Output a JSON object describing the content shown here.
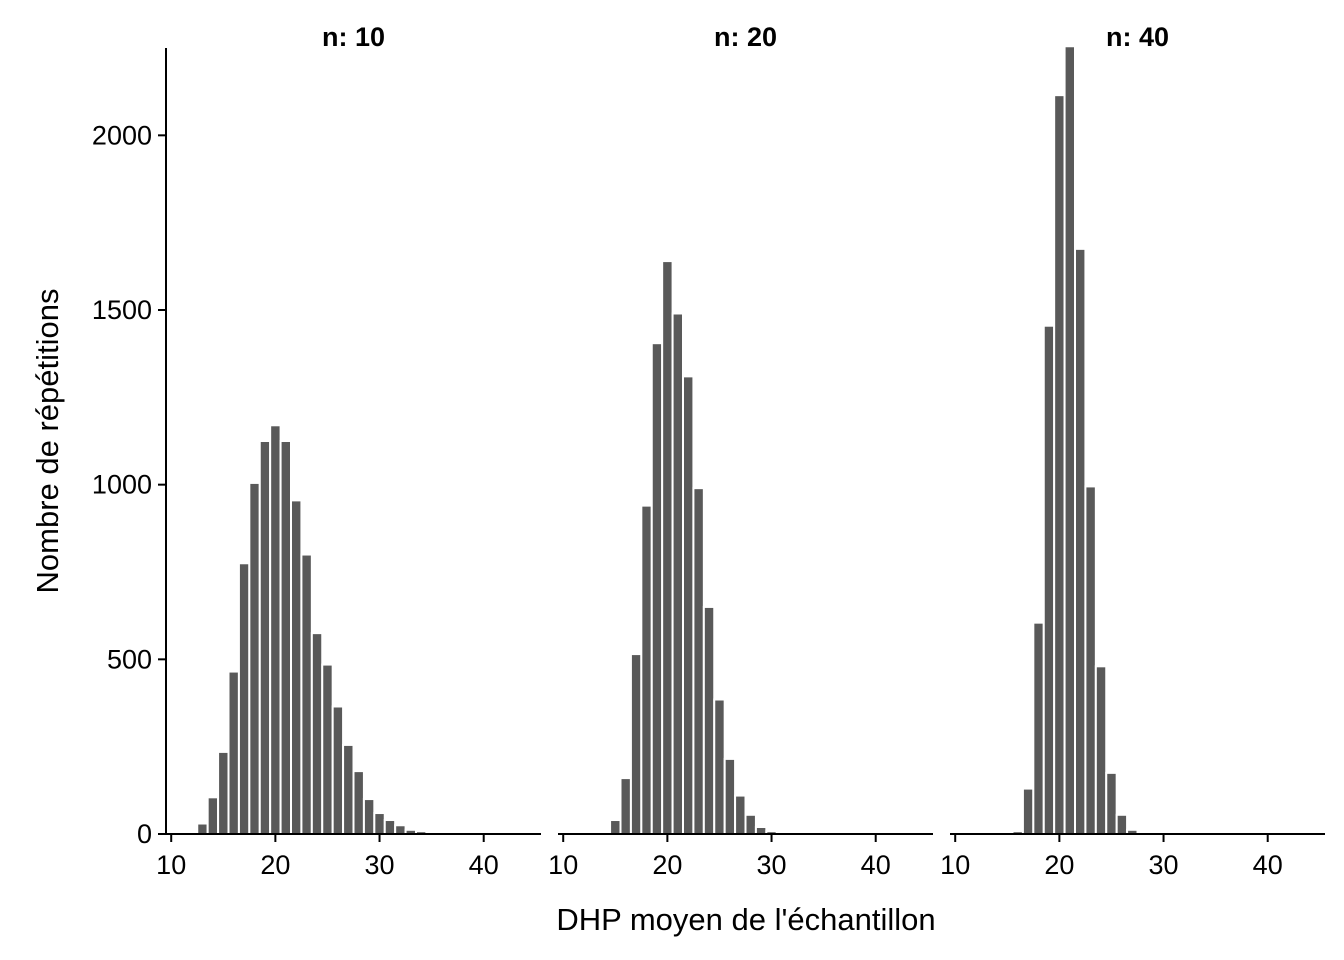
{
  "chart_data": {
    "type": "bar",
    "xlabel": "DHP moyen de l'échantillon",
    "ylabel": "Nombre de répétitions",
    "ylim": [
      0,
      2250
    ],
    "y_ticks": [
      0,
      500,
      1000,
      1500,
      2000
    ],
    "y_tick_labels": [
      "0",
      "500",
      "1000",
      "1500",
      "2000"
    ],
    "xlim": [
      9.5,
      45.5
    ],
    "x_ticks": [
      10,
      20,
      30,
      40
    ],
    "x_tick_labels": [
      "10",
      "20",
      "30",
      "40"
    ],
    "bin_width": 1,
    "grid": false,
    "bar_color": "#595959",
    "panels": [
      {
        "title": "n: 10",
        "bins": [
          13,
          14,
          15,
          16,
          17,
          18,
          19,
          20,
          21,
          22,
          23,
          24,
          25,
          26,
          27,
          28,
          29,
          30,
          31,
          32,
          33,
          34,
          35,
          36
        ],
        "values": [
          30,
          105,
          235,
          465,
          775,
          1005,
          1125,
          1170,
          1125,
          955,
          800,
          575,
          485,
          365,
          255,
          180,
          100,
          60,
          40,
          25,
          12,
          8,
          3,
          2
        ]
      },
      {
        "title": "n: 20",
        "bins": [
          14,
          15,
          16,
          17,
          18,
          19,
          20,
          21,
          22,
          23,
          24,
          25,
          26,
          27,
          28,
          29,
          30,
          31
        ],
        "values": [
          5,
          40,
          160,
          515,
          940,
          1405,
          1640,
          1490,
          1310,
          990,
          650,
          385,
          215,
          110,
          55,
          20,
          8,
          2
        ]
      },
      {
        "title": "n: 40",
        "bins": [
          16,
          17,
          18,
          19,
          20,
          21,
          22,
          23,
          24,
          25,
          26,
          27,
          28
        ],
        "values": [
          8,
          130,
          605,
          1455,
          2115,
          2255,
          1675,
          995,
          480,
          175,
          55,
          12,
          2
        ]
      }
    ]
  }
}
